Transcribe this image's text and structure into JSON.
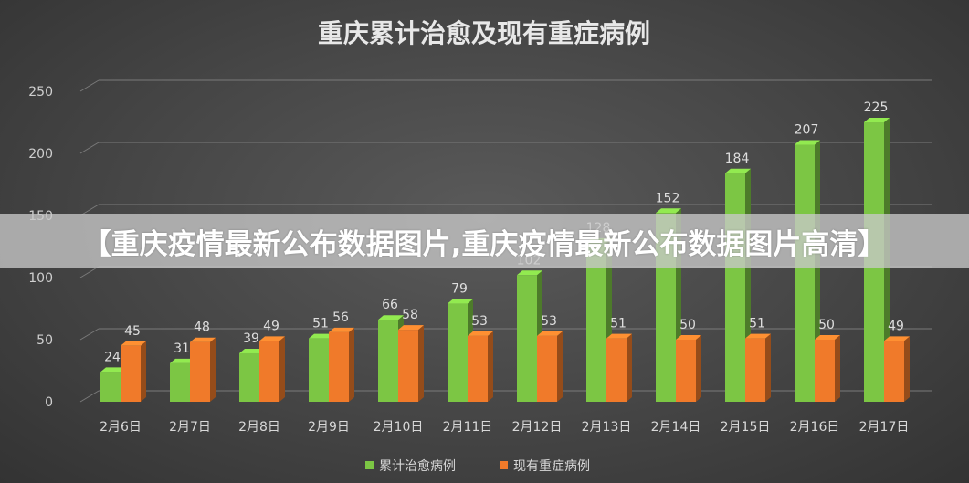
{
  "chart_data": {
    "type": "bar",
    "title": "重庆累计治愈及现有重症病例",
    "categories": [
      "2月6日",
      "2月7日",
      "2月8日",
      "2月9日",
      "2月10日",
      "2月11日",
      "2月12日",
      "2月13日",
      "2月14日",
      "2月15日",
      "2月16日",
      "2月17日"
    ],
    "series": [
      {
        "name": "累计治愈病例",
        "color": "#7cc644",
        "values": [
          24,
          31,
          39,
          51,
          66,
          79,
          102,
          128,
          152,
          184,
          207,
          225
        ]
      },
      {
        "name": "现有重症病例",
        "color": "#f07a2a",
        "values": [
          45,
          48,
          49,
          56,
          58,
          53,
          53,
          51,
          50,
          51,
          50,
          49
        ]
      }
    ],
    "ylim": [
      0,
      250
    ],
    "yticks": [
      "0",
      "50",
      "100",
      "150",
      "200",
      "250"
    ],
    "grid": true,
    "legend": "bottom",
    "xlabel": "",
    "ylabel": ""
  },
  "banner": {
    "text": "【重庆疫情最新公布数据图片,重庆疫情最新公布数据图片高清】"
  }
}
